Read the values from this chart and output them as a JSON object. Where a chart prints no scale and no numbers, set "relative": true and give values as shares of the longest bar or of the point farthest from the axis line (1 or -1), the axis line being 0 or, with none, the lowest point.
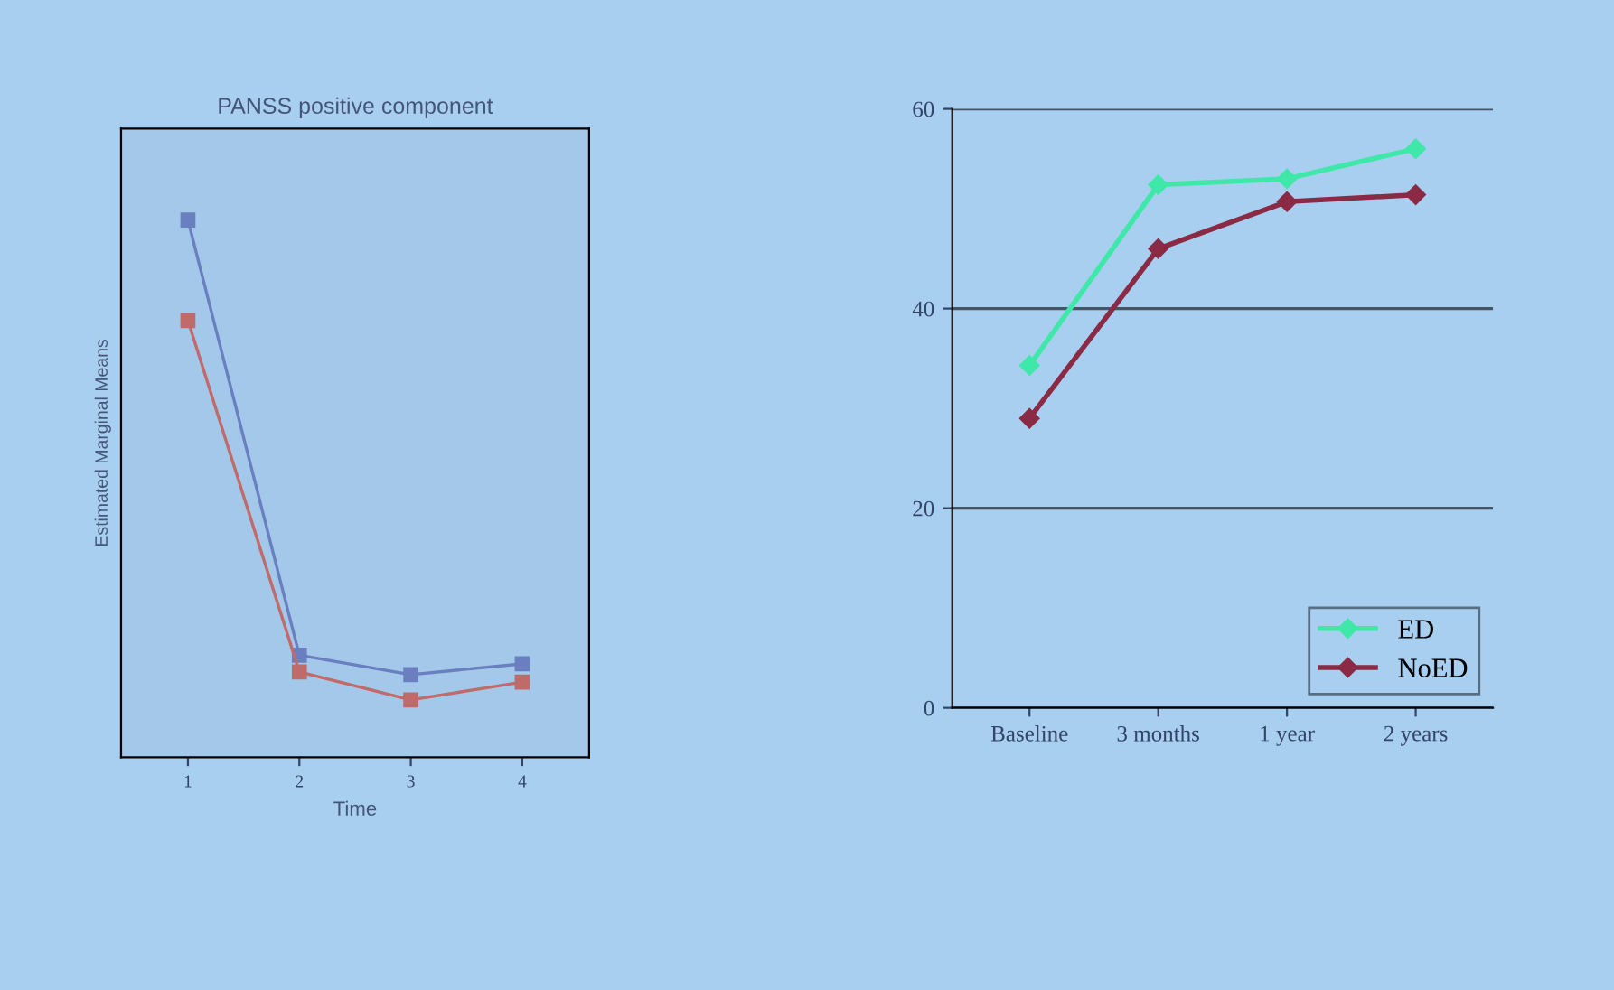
{
  "chart_data": [
    {
      "type": "line",
      "title": "PANSS positive component",
      "xlabel": "Time",
      "ylabel": "Estimated Marginal Means",
      "relative": true,
      "categories": [
        "1",
        "2",
        "3",
        "4"
      ],
      "marker": "square",
      "series": [
        {
          "color": "#6a7fc0",
          "values": [
            1,
            0.19,
            0.154,
            0.174
          ]
        },
        {
          "color": "#c06a6a",
          "values": [
            0.813,
            0.159,
            0.107,
            0.14
          ]
        }
      ]
    },
    {
      "type": "line",
      "categories": [
        "Baseline",
        "3 months",
        "1 year",
        "2 years"
      ],
      "ylim": [
        0,
        60
      ],
      "yticks": [
        0,
        20,
        40,
        60
      ],
      "grid": "y",
      "legend": "bottom right",
      "marker": "diamond",
      "series": [
        {
          "name": "ED",
          "color": "#3fe8a8",
          "values": [
            34.3,
            52.4,
            53,
            56
          ]
        },
        {
          "name": "NoED",
          "color": "#8b2a45",
          "values": [
            29,
            46,
            50.7,
            51.4
          ]
        }
      ]
    }
  ]
}
